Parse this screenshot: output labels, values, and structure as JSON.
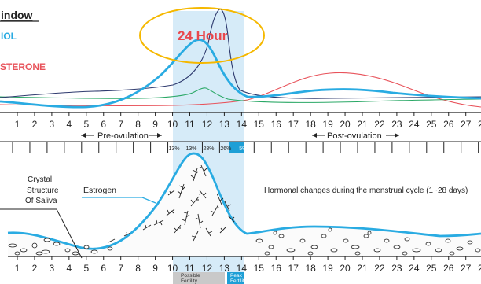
{
  "legend": {
    "title_fragment": "indow",
    "estradiol_fragment": "IOL",
    "progesterone_fragment": "STERONE",
    "estradiol_color": "#29abe2",
    "progesterone_color": "#e8525a"
  },
  "window_label": "24 Hour",
  "window_label_color": "#e8474c",
  "ellipse_color": "#f5b800",
  "fertile_band_color": "#d6ebf8",
  "days": [
    "1",
    "2",
    "3",
    "4",
    "5",
    "6",
    "7",
    "8",
    "9",
    "10",
    "11",
    "12",
    "13",
    "14",
    "15",
    "16",
    "17",
    "18",
    "19",
    "20",
    "21",
    "22",
    "23",
    "24",
    "25",
    "26",
    "27",
    "28"
  ],
  "phases": {
    "pre": "Pre-ovulation",
    "post": "Post-ovulation"
  },
  "percentages": [
    "13%",
    "13%",
    "28%",
    "26%",
    "5%"
  ],
  "percent_highlight_color": "#1e9fd6",
  "lower": {
    "crystal_label": [
      "Crystal",
      "Structure",
      "Of Saliva"
    ],
    "estrogen_label": "Estrogen",
    "caption": "Hormonal changes during the menstrual cycle (1~28 days)",
    "possible_fertility": [
      "Possible",
      "Fertility"
    ],
    "peak_fertility": [
      "Peak",
      "Fertility"
    ]
  },
  "curve_colors": {
    "estrogen": "#29abe2",
    "lh": "#2e3a6e",
    "fsh": "#2aa866",
    "progesterone": "#e8525a"
  }
}
